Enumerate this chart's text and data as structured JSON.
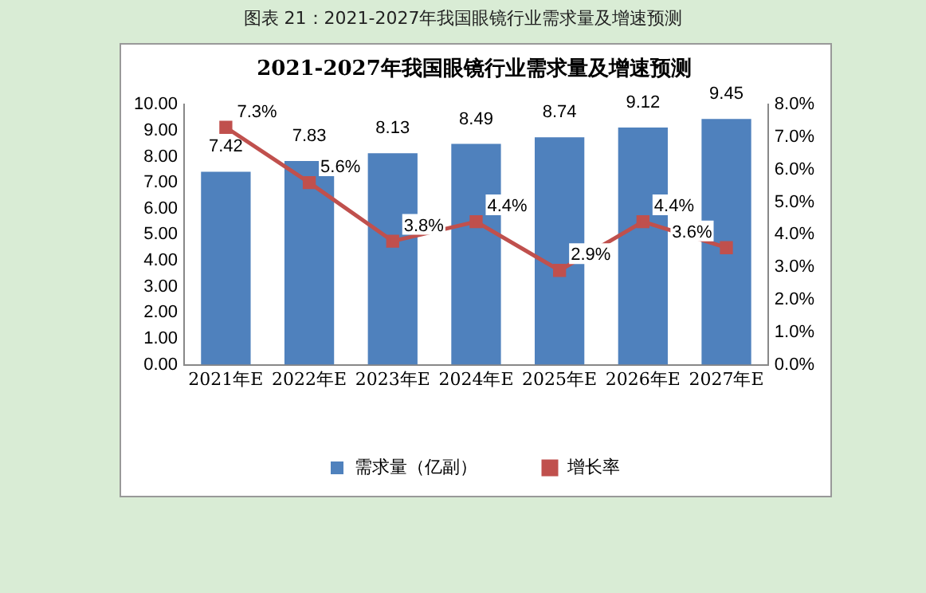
{
  "chart_data": {
    "type": "bar",
    "title": "2021-2027年我国眼镜行业需求量及增速预测",
    "annotations": [
      "图表 21：2021-2027年我国眼镜行业需求量及增速预测"
    ],
    "categories": [
      "2021年E",
      "2022年E",
      "2023年E",
      "2024年E",
      "2025年E",
      "2026年E",
      "2027年E"
    ],
    "series": [
      {
        "name": "需求量（亿副）",
        "color": "#4f81bd",
        "values": [
          7.42,
          7.83,
          8.13,
          8.49,
          8.74,
          9.12,
          9.45
        ],
        "value_labels": [
          "7.42",
          "7.83",
          "8.13",
          "8.49",
          "8.74",
          "9.12",
          "9.45"
        ]
      },
      {
        "name": "增长率",
        "type": "line",
        "axis": "y2",
        "color": "#c0504d",
        "marker": "square",
        "values": [
          7.3,
          5.6,
          3.8,
          4.4,
          2.9,
          4.4,
          3.6
        ],
        "value_labels": [
          "7.3%",
          "5.6%",
          "3.8%",
          "4.4%",
          "2.9%",
          "4.4%",
          "3.6%"
        ]
      }
    ],
    "ylim": [
      0,
      10
    ],
    "yticks": [
      {
        "value": 0,
        "label": "0.00"
      },
      {
        "value": 1,
        "label": "1.00"
      },
      {
        "value": 2,
        "label": "2.00"
      },
      {
        "value": 3,
        "label": "3.00"
      },
      {
        "value": 4,
        "label": "4.00"
      },
      {
        "value": 5,
        "label": "5.00"
      },
      {
        "value": 6,
        "label": "6.00"
      },
      {
        "value": 7,
        "label": "7.00"
      },
      {
        "value": 8,
        "label": "8.00"
      },
      {
        "value": 9,
        "label": "9.00"
      },
      {
        "value": 10,
        "label": "10.00"
      }
    ],
    "y2lim": [
      0,
      8
    ],
    "y2ticks": [
      {
        "value": 0,
        "label": "0.0%"
      },
      {
        "value": 1,
        "label": "1.0%"
      },
      {
        "value": 2,
        "label": "2.0%"
      },
      {
        "value": 3,
        "label": "3.0%"
      },
      {
        "value": 4,
        "label": "4.0%"
      },
      {
        "value": 5,
        "label": "5.0%"
      },
      {
        "value": 6,
        "label": "6.0%"
      },
      {
        "value": 7,
        "label": "7.0%"
      },
      {
        "value": 8,
        "label": "8.0%"
      }
    ],
    "grid": false,
    "legend": "bottom"
  }
}
